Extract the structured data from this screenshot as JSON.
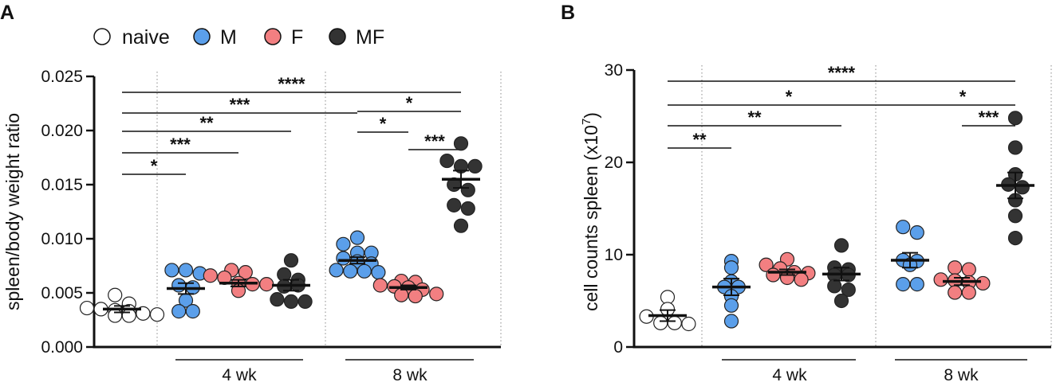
{
  "legend": {
    "items": [
      {
        "label": "naive",
        "color": "#ffffff"
      },
      {
        "label": "M",
        "color": "#5b9fea"
      },
      {
        "label": "F",
        "color": "#f27f81"
      },
      {
        "label": "MF",
        "color": "#333333"
      }
    ]
  },
  "chart_data": [
    {
      "panel": "A",
      "type": "scatter",
      "ylabel": "spleen/body weight ratio",
      "ylim": [
        0,
        0.025
      ],
      "yticks": [
        "0.000",
        "0.005",
        "0.010",
        "0.015",
        "0.020",
        "0.025"
      ],
      "group_labels": [
        "4 wk",
        "8 wk"
      ],
      "groups": [
        {
          "name": "naive",
          "color": "#ffffff",
          "mean": 0.0035,
          "sem": 0.0003,
          "values": [
            0.0048,
            0.004,
            0.0036,
            0.0035,
            0.0034,
            0.0033,
            0.0031,
            0.0029,
            0.003,
            0.0029
          ]
        },
        {
          "name": "M 4 wk",
          "color": "#5b9fea",
          "mean": 0.0054,
          "sem": 0.0005,
          "values": [
            0.0071,
            0.0071,
            0.0068,
            0.0057,
            0.0055,
            0.0043,
            0.0033,
            0.0033
          ]
        },
        {
          "name": "F 4 wk",
          "color": "#f27f81",
          "mean": 0.0059,
          "sem": 0.0003,
          "values": [
            0.0071,
            0.0069,
            0.0066,
            0.0064,
            0.0059,
            0.0058,
            0.0058,
            0.0052
          ]
        },
        {
          "name": "MF 4 wk",
          "color": "#333333",
          "mean": 0.0057,
          "sem": 0.0005,
          "values": [
            0.008,
            0.0067,
            0.0062,
            0.0056,
            0.0057,
            0.0044,
            0.0042,
            0.0042
          ]
        },
        {
          "name": "M 8 wk",
          "color": "#5b9fea",
          "mean": 0.008,
          "sem": 0.0003,
          "values": [
            0.0101,
            0.0095,
            0.0087,
            0.0087,
            0.0082,
            0.0079,
            0.0077,
            0.0071,
            0.007,
            0.007,
            0.0069
          ]
        },
        {
          "name": "F 8 wk",
          "color": "#f27f81",
          "mean": 0.0055,
          "sem": 0.0002,
          "values": [
            0.0061,
            0.006,
            0.0057,
            0.0056,
            0.0055,
            0.0053,
            0.0049,
            0.0048,
            0.0047
          ]
        },
        {
          "name": "MF 8 wk",
          "color": "#333333",
          "mean": 0.0155,
          "sem": 0.0008,
          "values": [
            0.0188,
            0.0172,
            0.0167,
            0.0167,
            0.015,
            0.0145,
            0.0131,
            0.0128,
            0.0112
          ]
        }
      ],
      "significance": [
        {
          "from": 0,
          "to": 1,
          "label": "*"
        },
        {
          "from": 0,
          "to": 2,
          "label": "***"
        },
        {
          "from": 0,
          "to": 3,
          "label": "**"
        },
        {
          "from": 0,
          "to": 4,
          "label": "***"
        },
        {
          "from": 0,
          "to": 6,
          "label": "****"
        },
        {
          "from": 4,
          "to": 5,
          "label": "*"
        },
        {
          "from": 5,
          "to": 6,
          "label": "***"
        },
        {
          "from": 4,
          "to": 6,
          "label": "*"
        }
      ]
    },
    {
      "panel": "B",
      "type": "scatter",
      "ylabel": "cell counts spleen (x10",
      "ylabel_sup": "7",
      "ylabel_end": ")",
      "ylim": [
        0,
        30
      ],
      "yticks": [
        "0",
        "10",
        "20",
        "30"
      ],
      "group_labels": [
        "4 wk",
        "8 wk"
      ],
      "groups": [
        {
          "name": "naive",
          "color": "#ffffff",
          "mean": 3.4,
          "sem": 0.6,
          "values": [
            5.4,
            4.1,
            3.3,
            2.6,
            2.6,
            2.5
          ]
        },
        {
          "name": "M 4 wk",
          "color": "#5b9fea",
          "mean": 6.5,
          "sem": 0.9,
          "values": [
            9.3,
            8.6,
            7.1,
            6.5,
            6.5,
            5.5,
            4.5,
            2.8
          ]
        },
        {
          "name": "F 4 wk",
          "color": "#f27f81",
          "mean": 8.1,
          "sem": 0.3,
          "values": [
            9.5,
            8.9,
            8.5,
            8.1,
            8.0,
            7.8,
            7.5,
            7.3
          ]
        },
        {
          "name": "MF 4 wk",
          "color": "#333333",
          "mean": 7.9,
          "sem": 0.7,
          "values": [
            11.0,
            8.6,
            8.4,
            7.8,
            7.8,
            6.6,
            6.2,
            5.0
          ]
        },
        {
          "name": "M 8 wk",
          "color": "#5b9fea",
          "mean": 9.4,
          "sem": 0.8,
          "values": [
            13.0,
            12.4,
            9.4,
            9.3,
            8.9,
            6.8,
            6.8
          ]
        },
        {
          "name": "F 8 wk",
          "color": "#f27f81",
          "mean": 7.1,
          "sem": 0.4,
          "values": [
            8.6,
            8.4,
            7.3,
            7.2,
            7.0,
            6.9,
            5.9,
            5.9
          ]
        },
        {
          "name": "MF 8 wk",
          "color": "#333333",
          "mean": 17.5,
          "sem": 1.4,
          "values": [
            24.8,
            21.6,
            18.7,
            17.6,
            17.3,
            15.9,
            14.2,
            11.8
          ]
        }
      ],
      "significance": [
        {
          "from": 0,
          "to": 1,
          "label": "**"
        },
        {
          "from": 0,
          "to": 3,
          "label": "**"
        },
        {
          "from": 0,
          "to": 4,
          "label": "*"
        },
        {
          "from": 0,
          "to": 6,
          "label": "****"
        },
        {
          "from": 5,
          "to": 6,
          "label": "***"
        },
        {
          "from": 4,
          "to": 6,
          "label": "*"
        }
      ]
    }
  ]
}
